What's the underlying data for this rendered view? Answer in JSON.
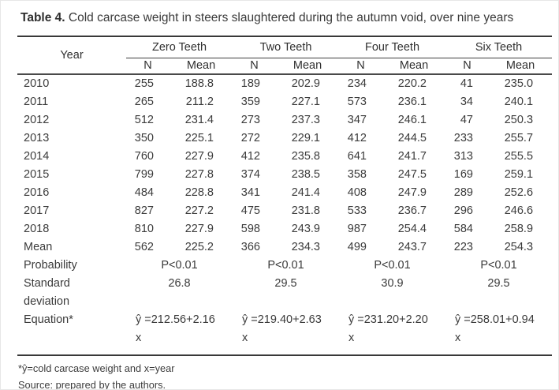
{
  "page": {
    "background": "#ffffff",
    "text_color": "#3b3b3b",
    "rule_color": "#3a3a3a"
  },
  "title": {
    "label": "Table 4.",
    "text": "Cold carcase weight in steers slaughtered during the autumn void, over nine years"
  },
  "table": {
    "year_header": "Year",
    "groups": [
      {
        "label": "Zero Teeth"
      },
      {
        "label": "Two Teeth"
      },
      {
        "label": "Four Teeth"
      },
      {
        "label": "Six Teeth"
      }
    ],
    "sub_headers": {
      "n": "N",
      "mean": "Mean"
    },
    "rows": [
      {
        "year": "2010",
        "values": [
          "255",
          "188.8",
          "189",
          "202.9",
          "234",
          "220.2",
          "41",
          "235.0"
        ]
      },
      {
        "year": "2011",
        "values": [
          "265",
          "211.2",
          "359",
          "227.1",
          "573",
          "236.1",
          "34",
          "240.1"
        ]
      },
      {
        "year": "2012",
        "values": [
          "512",
          "231.4",
          "273",
          "237.3",
          "347",
          "246.1",
          "47",
          "250.3"
        ]
      },
      {
        "year": "2013",
        "values": [
          "350",
          "225.1",
          "272",
          "229.1",
          "412",
          "244.5",
          "233",
          "255.7"
        ]
      },
      {
        "year": "2014",
        "values": [
          "760",
          "227.9",
          "412",
          "235.8",
          "641",
          "241.7",
          "313",
          "255.5"
        ]
      },
      {
        "year": "2015",
        "values": [
          "799",
          "227.8",
          "374",
          "238.5",
          "358",
          "247.5",
          "169",
          "259.1"
        ]
      },
      {
        "year": "2016",
        "values": [
          "484",
          "228.8",
          "341",
          "241.4",
          "408",
          "247.9",
          "289",
          "252.6"
        ]
      },
      {
        "year": "2017",
        "values": [
          "827",
          "227.2",
          "475",
          "231.8",
          "533",
          "236.7",
          "296",
          "246.6"
        ]
      },
      {
        "year": "2018",
        "values": [
          "810",
          "227.9",
          "598",
          "243.9",
          "987",
          "254.4",
          "584",
          "258.9"
        ]
      },
      {
        "year": "Mean",
        "values": [
          "562",
          "225.2",
          "366",
          "234.3",
          "499",
          "243.7",
          "223",
          "254.3"
        ]
      }
    ],
    "probability": {
      "label": "Probability",
      "values": [
        "P<0.01",
        "P<0.01",
        "P<0.01",
        "P<0.01"
      ]
    },
    "standard_deviation": {
      "label": "Standard deviation",
      "values": [
        "26.8",
        "29.5",
        "30.9",
        "29.5"
      ]
    },
    "equation": {
      "label": "Equation*",
      "values": [
        {
          "line1": "ŷ =212.56+2.16",
          "line2": "x"
        },
        {
          "line1": "ŷ =219.40+2.63",
          "line2": "x"
        },
        {
          "line1": "ŷ =231.20+2.20",
          "line2": "x"
        },
        {
          "line1": "ŷ =258.01+0.94",
          "line2": "x"
        }
      ]
    }
  },
  "footnotes": [
    "*ŷ=cold carcase weight and x=year",
    "Source: prepared by the authors."
  ]
}
